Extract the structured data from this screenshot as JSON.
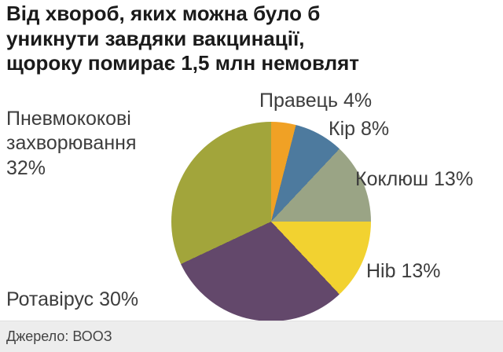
{
  "title": {
    "lines": [
      "Від хвороб, яких можна було б",
      "уникнути завдяки вакцинації,",
      "щороку помирає 1,5 млн немовлят"
    ]
  },
  "labels": {
    "pravets": "Правець 4%",
    "kir": "Кір 8%",
    "koklyush": "Коклюш 13%",
    "hib": "Hib 13%",
    "rotavirus": "Ротавірус 30%",
    "pnevmo_line1": "Пневмококові",
    "pnevmo_line2": "захворювання",
    "pnevmo_line3": "32%"
  },
  "footer": {
    "source": "Джерело: ВООЗ"
  },
  "chart_data": {
    "type": "pie",
    "title": "Від хвороб, яких можна було б уникнути завдяки вакцинації, щороку помирає 1,5 млн немовлят",
    "start_angle_deg": 0,
    "direction": "clockwise",
    "legend_position": "around",
    "slices": [
      {
        "label": "Правець",
        "value": 4,
        "color": "#F0A125"
      },
      {
        "label": "Кір",
        "value": 8,
        "color": "#4D7A9E"
      },
      {
        "label": "Коклюш",
        "value": 13,
        "color": "#9AA485"
      },
      {
        "label": "Hib",
        "value": 13,
        "color": "#F2D230"
      },
      {
        "label": "Ротавірус",
        "value": 30,
        "color": "#63486B"
      },
      {
        "label": "Пневмококові захворювання",
        "value": 32,
        "color": "#A2A53B"
      }
    ]
  }
}
